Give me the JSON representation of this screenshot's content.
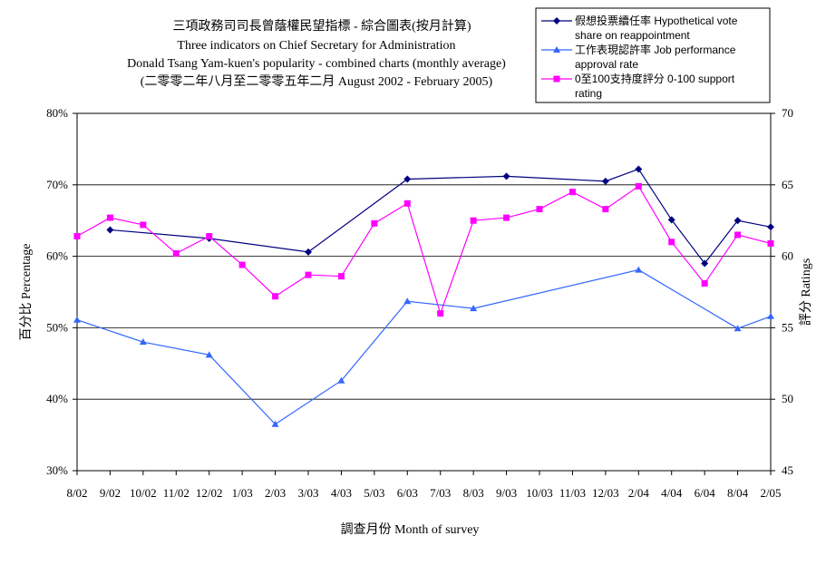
{
  "chart_data": {
    "type": "line",
    "title": [
      "三項政務司司長曾蔭權民望指標 - 綜合圖表(按月計算)",
      "Three indicators on Chief Secretary for Administration",
      "Donald Tsang Yam-kuen's popularity - combined charts (monthly average)",
      "(二零零二年八月至二零零五年二月 August 2002 - February 2005)"
    ],
    "xlabel": "調查月份 Month of survey",
    "ylabel_left": "百分比 Percentage",
    "ylabel_right": "評分 Ratings",
    "ylim_left": [
      30,
      80
    ],
    "yticks_left": [
      "30%",
      "40%",
      "50%",
      "60%",
      "70%",
      "80%"
    ],
    "ylim_right": [
      45,
      70
    ],
    "yticks_right": [
      "45",
      "50",
      "55",
      "60",
      "65",
      "70"
    ],
    "categories": [
      "8/02",
      "9/02",
      "10/02",
      "11/02",
      "12/02",
      "1/03",
      "2/03",
      "3/03",
      "4/03",
      "5/03",
      "6/03",
      "7/03",
      "8/03",
      "9/03",
      "10/03",
      "11/03",
      "12/03",
      "2/04",
      "4/04",
      "6/04",
      "8/04",
      "2/05"
    ],
    "grid": true,
    "legend_position": "top-right",
    "series": [
      {
        "name": "假想投票續任率 Hypothetical vote share on reappointment",
        "axis": "left",
        "color": "#000080",
        "marker": "diamond",
        "values": [
          null,
          63.7,
          null,
          null,
          62.5,
          null,
          null,
          60.6,
          null,
          null,
          70.8,
          null,
          null,
          71.2,
          null,
          null,
          70.5,
          72.2,
          65.1,
          59.0,
          65.0,
          64.1
        ]
      },
      {
        "name": "工作表現認許率 Job performance approval rate",
        "axis": "left",
        "color": "#3366ff",
        "marker": "triangle",
        "values": [
          51.1,
          null,
          48.0,
          null,
          46.2,
          null,
          36.5,
          null,
          42.6,
          null,
          53.7,
          null,
          52.7,
          null,
          null,
          null,
          null,
          58.1,
          null,
          null,
          49.9,
          51.6
        ]
      },
      {
        "name": "0至100支持度評分 0-100 support rating",
        "axis": "right",
        "color": "#ff00ff",
        "marker": "square",
        "values": [
          61.4,
          62.7,
          62.2,
          60.2,
          61.4,
          59.4,
          57.2,
          58.7,
          58.6,
          62.3,
          63.7,
          56.0,
          62.5,
          62.7,
          63.3,
          64.5,
          63.3,
          64.9,
          61.0,
          58.1,
          61.5,
          60.9
        ]
      }
    ]
  }
}
